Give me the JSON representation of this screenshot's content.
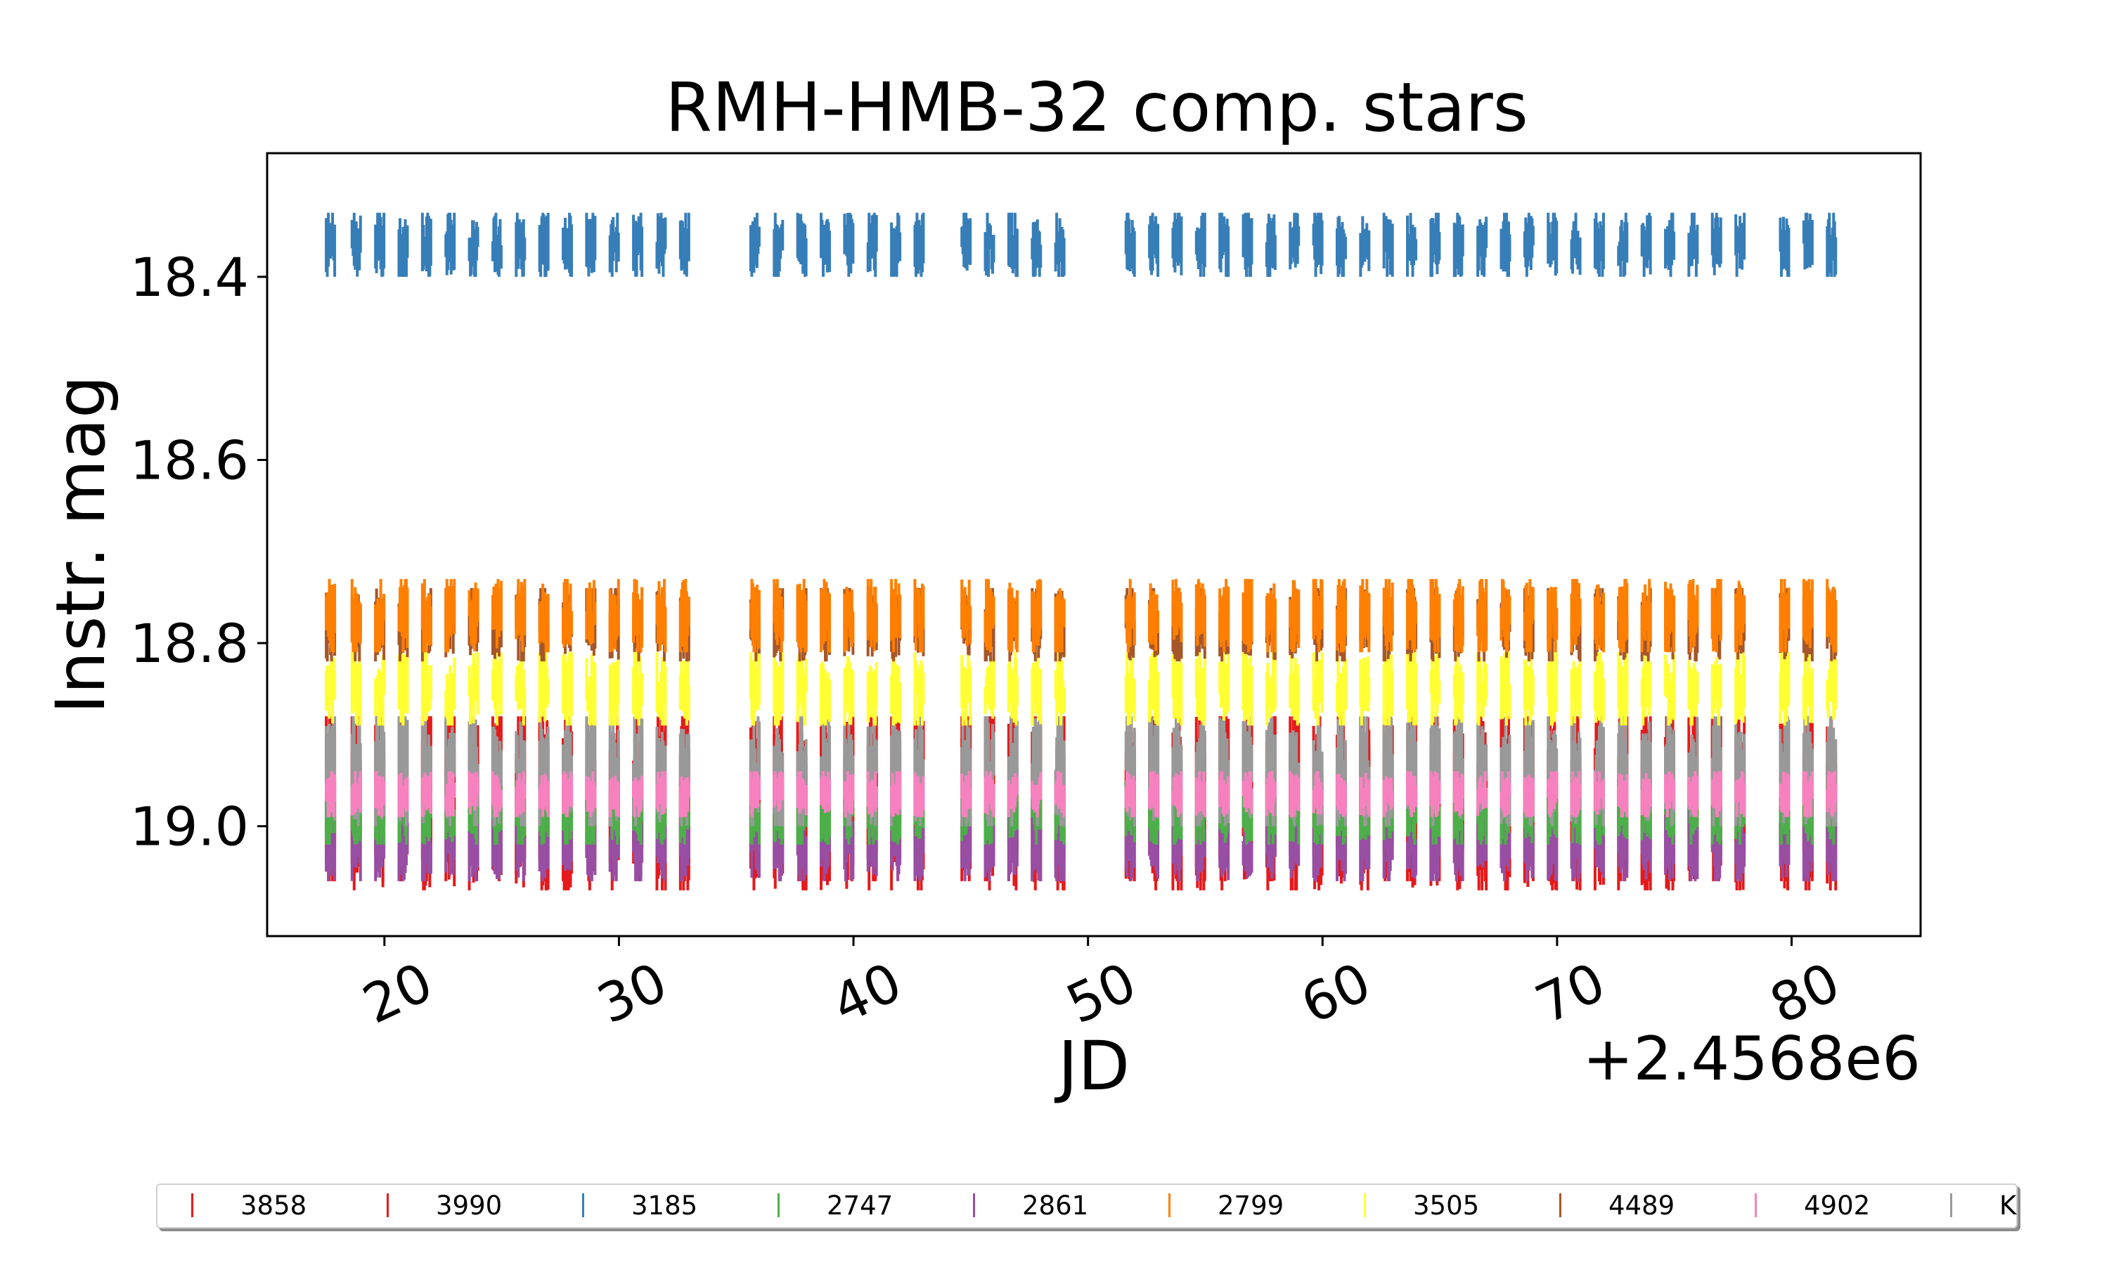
{
  "chart_data": {
    "type": "line",
    "title": "RMH-HMB-32 comp. stars",
    "xlabel": "JD",
    "ylabel": "Instr. mag",
    "x_offset_label": "+2.4568e6",
    "xlim": [
      15,
      85.5
    ],
    "ylim": [
      19.12,
      18.265
    ],
    "y_inverted": true,
    "grid": false,
    "xticks": [
      20,
      30,
      40,
      50,
      60,
      70,
      80
    ],
    "xtick_labels": [
      "20",
      "30",
      "40",
      "50",
      "60",
      "70",
      "80"
    ],
    "yticks": [
      18.4,
      18.6,
      18.8,
      19.0
    ],
    "ytick_labels": [
      "18.4",
      "18.6",
      "18.8",
      "19.0"
    ],
    "observation_nights_x": [
      17.7,
      18.8,
      19.8,
      20.8,
      21.8,
      22.8,
      23.8,
      24.8,
      25.8,
      26.8,
      27.8,
      28.8,
      29.8,
      30.8,
      31.8,
      32.8,
      35.8,
      36.8,
      37.8,
      38.8,
      39.8,
      40.8,
      41.8,
      42.8,
      44.8,
      45.8,
      46.8,
      47.8,
      48.8,
      51.8,
      52.8,
      53.8,
      54.8,
      55.8,
      56.8,
      57.8,
      58.8,
      59.8,
      60.8,
      61.8,
      62.8,
      63.8,
      64.8,
      65.8,
      66.8,
      67.8,
      68.8,
      69.8,
      70.8,
      71.8,
      72.8,
      73.8,
      74.8,
      75.8,
      76.8,
      77.8,
      79.7,
      80.7,
      81.7
    ],
    "series": [
      {
        "name": "3858",
        "color": "#e41a1c",
        "mag_min": 18.88,
        "mag_max": 19.07
      },
      {
        "name": "3990",
        "color": "#e41a1c",
        "mag_min": 18.88,
        "mag_max": 19.06
      },
      {
        "name": "3185",
        "color": "#377eb8",
        "mag_min": 18.33,
        "mag_max": 18.4
      },
      {
        "name": "2747",
        "color": "#4daf4a",
        "mag_min": 18.95,
        "mag_max": 19.02
      },
      {
        "name": "2861",
        "color": "#984ea3",
        "mag_min": 18.98,
        "mag_max": 19.06
      },
      {
        "name": "2799",
        "color": "#ff7f00",
        "mag_min": 18.73,
        "mag_max": 18.81
      },
      {
        "name": "3505",
        "color": "#ffff33",
        "mag_min": 18.81,
        "mag_max": 18.89
      },
      {
        "name": "4489",
        "color": "#a65628",
        "mag_min": 18.74,
        "mag_max": 18.82
      },
      {
        "name": "4902",
        "color": "#f781bf",
        "mag_min": 18.94,
        "mag_max": 18.99
      },
      {
        "name": "K",
        "color": "#999999",
        "mag_min": 18.88,
        "mag_max": 19.0
      }
    ]
  },
  "legend": {
    "entries": [
      {
        "label": "3858",
        "color": "#e41a1c"
      },
      {
        "label": "3990",
        "color": "#e41a1c"
      },
      {
        "label": "3185",
        "color": "#377eb8"
      },
      {
        "label": "2747",
        "color": "#4daf4a"
      },
      {
        "label": "2861",
        "color": "#984ea3"
      },
      {
        "label": "2799",
        "color": "#ff7f00"
      },
      {
        "label": "3505",
        "color": "#ffff33"
      },
      {
        "label": "4489",
        "color": "#a65628"
      },
      {
        "label": "4902",
        "color": "#f781bf"
      },
      {
        "label": "K",
        "color": "#999999"
      }
    ]
  }
}
